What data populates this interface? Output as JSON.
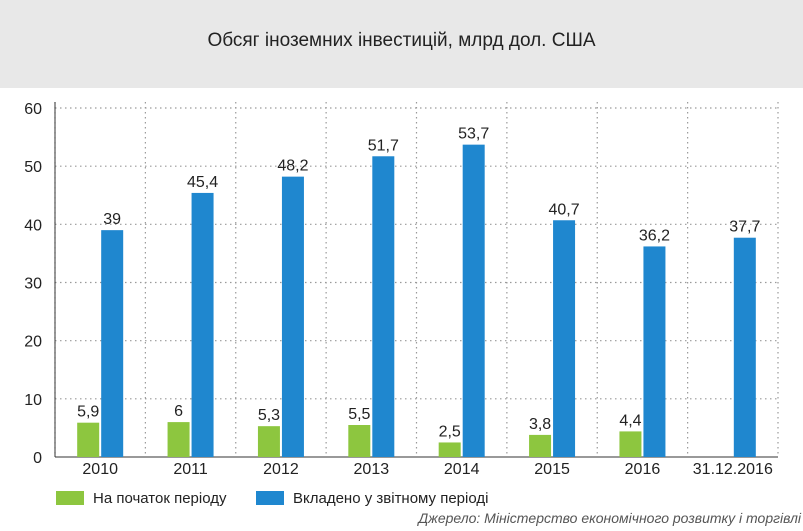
{
  "chart_data": {
    "type": "bar",
    "title": "Обсяг іноземних інвестицій, млрд дол. США",
    "categories": [
      "2010",
      "2011",
      "2012",
      "2013",
      "2014",
      "2015",
      "2016",
      "31.12.2016"
    ],
    "series": [
      {
        "name": "На початок періоду",
        "color": "#8dc63f",
        "values": [
          5.9,
          6,
          5.3,
          5.5,
          2.5,
          3.8,
          4.4,
          null
        ],
        "labels": [
          "5,9",
          "6",
          "5,3",
          "5,5",
          "2,5",
          "3,8",
          "4,4",
          ""
        ]
      },
      {
        "name": "Вкладено у звітному періоді",
        "color": "#1f87cf",
        "values": [
          39,
          45.4,
          48.2,
          51.7,
          53.7,
          40.7,
          36.2,
          37.7
        ],
        "labels": [
          "39",
          "45,4",
          "48,2",
          "51,7",
          "53,7",
          "40,7",
          "36,2",
          "37,7"
        ]
      }
    ],
    "yticks": [
      "0",
      "10",
      "20",
      "30",
      "40",
      "50",
      "60"
    ],
    "ylim": [
      0,
      60
    ],
    "grid": true,
    "legend_position": "bottom-left"
  },
  "source": "Джерело: Міністерство економічного розвитку і торгівлі"
}
